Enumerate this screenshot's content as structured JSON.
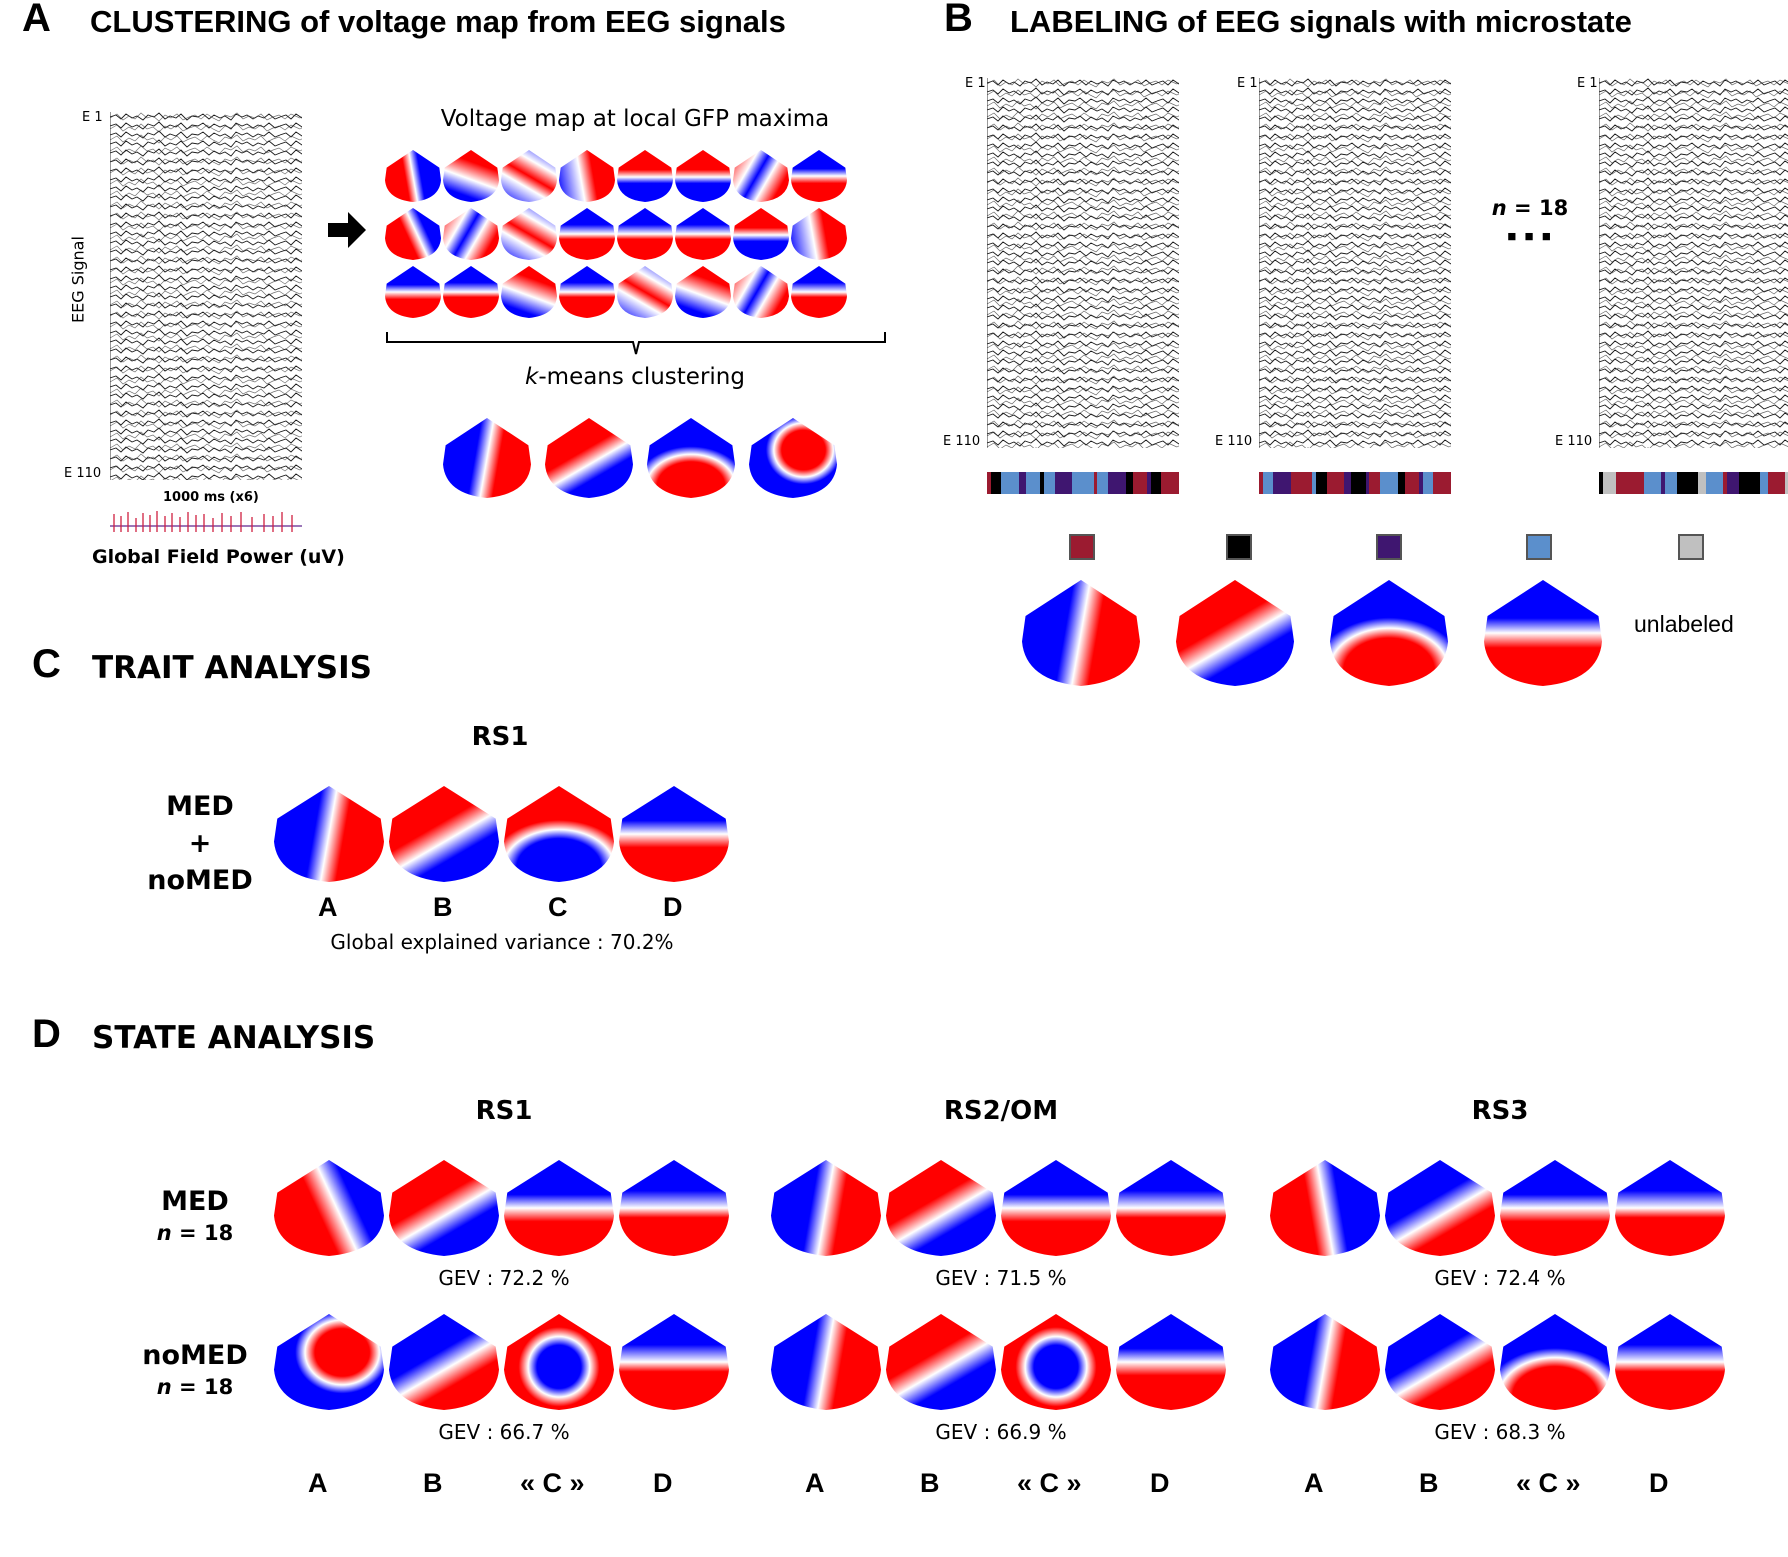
{
  "panel_a": {
    "letter": "A",
    "title": "CLUSTERING of voltage map from EEG signals",
    "eeg_top_label": "E 1",
    "eeg_bottom_label": "E 110",
    "y_axis_label": "EEG Signal",
    "time_label": "1000 ms (x6)",
    "gfp_label": "Global Field Power (uV)",
    "maps_title": "Voltage map at local GFP maxima",
    "kmeans_label_italic": "k",
    "kmeans_label_rest": "-means clustering"
  },
  "panel_b": {
    "letter": "B",
    "title": "LABELING of EEG signals with microstate",
    "eeg_top_label": "E 1",
    "eeg_bottom_label": "E 110",
    "n_label_italic": "n",
    "n_label_rest": " = 18",
    "ellipsis": "■ ■ ■",
    "unlabeled": "unlabeled",
    "legend_colors": [
      "#9b1b30",
      "#000000",
      "#3f1670",
      "#5b8fcc",
      "#c0c0c0"
    ]
  },
  "panel_c": {
    "letter": "C",
    "title": "TRAIT ANALYSIS",
    "column_title": "RS1",
    "row_label_1": "MED",
    "row_label_2": "+",
    "row_label_3": "noMED",
    "letters": [
      "A",
      "B",
      "C",
      "D"
    ],
    "gev": "Global explained variance : 70.2%"
  },
  "panel_d": {
    "letter": "D",
    "title": "STATE ANALYSIS",
    "columns": [
      "RS1",
      "RS2/OM",
      "RS3"
    ],
    "rows": [
      {
        "label": "MED",
        "n_italic": "n",
        "n_rest": " = 18"
      },
      {
        "label": "noMED",
        "n_italic": "n",
        "n_rest": " = 18"
      }
    ],
    "gev_med": [
      "GEV : 72.2 %",
      "GEV : 71.5 %",
      "GEV : 72.4 %"
    ],
    "gev_nomed": [
      "GEV : 66.7 %",
      "GEV : 66.9 %",
      "GEV : 68.3 %"
    ],
    "letters": [
      "A",
      "B",
      "« C »",
      "D"
    ]
  },
  "colors": {
    "red": "#ff0000",
    "blue": "#0000ff",
    "white": "#ffffff"
  }
}
